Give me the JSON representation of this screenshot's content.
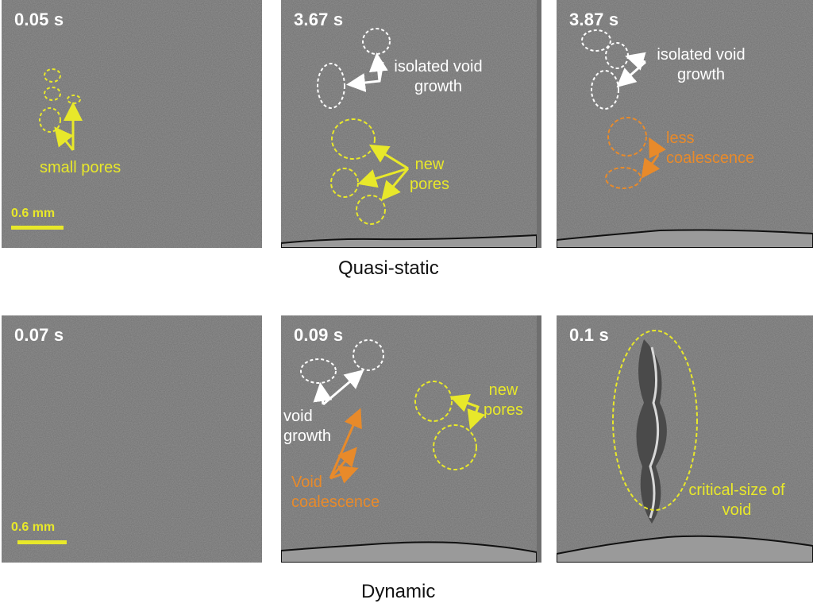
{
  "quasi_static": {
    "label": "Quasi-static",
    "panels": [
      {
        "time": "0.05 s",
        "scale_label": "0.6 mm",
        "annotation": "small pores"
      },
      {
        "time": "3.67 s",
        "annotation_white": "isolated void growth",
        "annotation_yellow": "new pores"
      },
      {
        "time": "3.87 s",
        "annotation_white": "isolated void growth",
        "annotation_orange": "less coalescence"
      }
    ]
  },
  "dynamic": {
    "label": "Dynamic",
    "panels": [
      {
        "time": "0.07 s",
        "scale_label": "0.6 mm"
      },
      {
        "time": "0.09 s",
        "annotation_white": "void growth",
        "annotation_orange": "Void coalescence",
        "annotation_yellow": "new pores"
      },
      {
        "time": "0.1 s",
        "annotation_yellow": "critical-size of void"
      }
    ]
  },
  "colors": {
    "annotation_yellow": "#e8e82a",
    "annotation_white": "#ffffff",
    "annotation_orange": "#e88a2a",
    "micrograph_gray": "#6f6f6f"
  }
}
